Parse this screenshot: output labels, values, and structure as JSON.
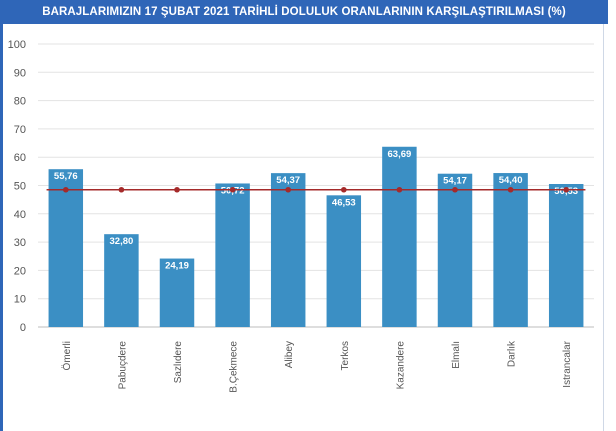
{
  "chart_data": {
    "type": "bar",
    "title": "BARAJLARIMIZIN 17 ŞUBAT 2021 TARİHLİ DOLULUK ORANLARININ KARŞILAŞTIRILMASI (%)",
    "categories": [
      "Ömerli",
      "Pabuçdere",
      "Sazlıdere",
      "B.Çekmece",
      "Alibey",
      "Terkos",
      "Kazandere",
      "Elmalı",
      "Darlık",
      "Istrancalar"
    ],
    "values": [
      55.76,
      32.8,
      24.19,
      50.72,
      54.37,
      46.53,
      63.69,
      54.17,
      54.4,
      50.53
    ],
    "value_labels": [
      "55,76",
      "32,80",
      "24,19",
      "50,72",
      "54,37",
      "46,53",
      "63,69",
      "54,17",
      "54,40",
      "50,53"
    ],
    "reference_line": {
      "values": [
        48.5,
        48.5,
        48.5,
        48.5,
        48.5,
        48.5,
        48.5,
        48.5,
        48.5,
        48.5
      ],
      "color": "#a52a2a"
    },
    "ylim": [
      0,
      100
    ],
    "yticks": [
      0,
      10,
      20,
      30,
      40,
      50,
      60,
      70,
      80,
      90,
      100
    ],
    "grid": true,
    "xlabel": "",
    "ylabel": "",
    "colors": {
      "bar": "#3b8fc4",
      "title_bg": "#2f66b8",
      "grid": "#e3e3e3"
    }
  }
}
